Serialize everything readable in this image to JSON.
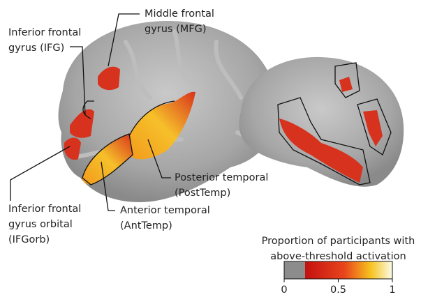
{
  "labels": [
    {
      "lines": [
        "Middle frontal",
        "gyrus (MFG)"
      ]
    },
    {
      "lines": [
        "Inferior frontal",
        "gyrus (IFG)"
      ]
    },
    {
      "lines": [
        "Posterior temporal",
        "(PostTemp)"
      ]
    },
    {
      "lines": [
        "Anterior temporal",
        "(AntTemp)"
      ]
    },
    {
      "lines": [
        "Inferior frontal",
        "gyrus orbital",
        "(IFGorb)"
      ]
    }
  ],
  "colorbar": {
    "title_lines": [
      "Proportion of participants with",
      "above-threshold activation"
    ],
    "range": [
      0,
      1
    ],
    "ticks": [
      0,
      0.5,
      1
    ]
  }
}
